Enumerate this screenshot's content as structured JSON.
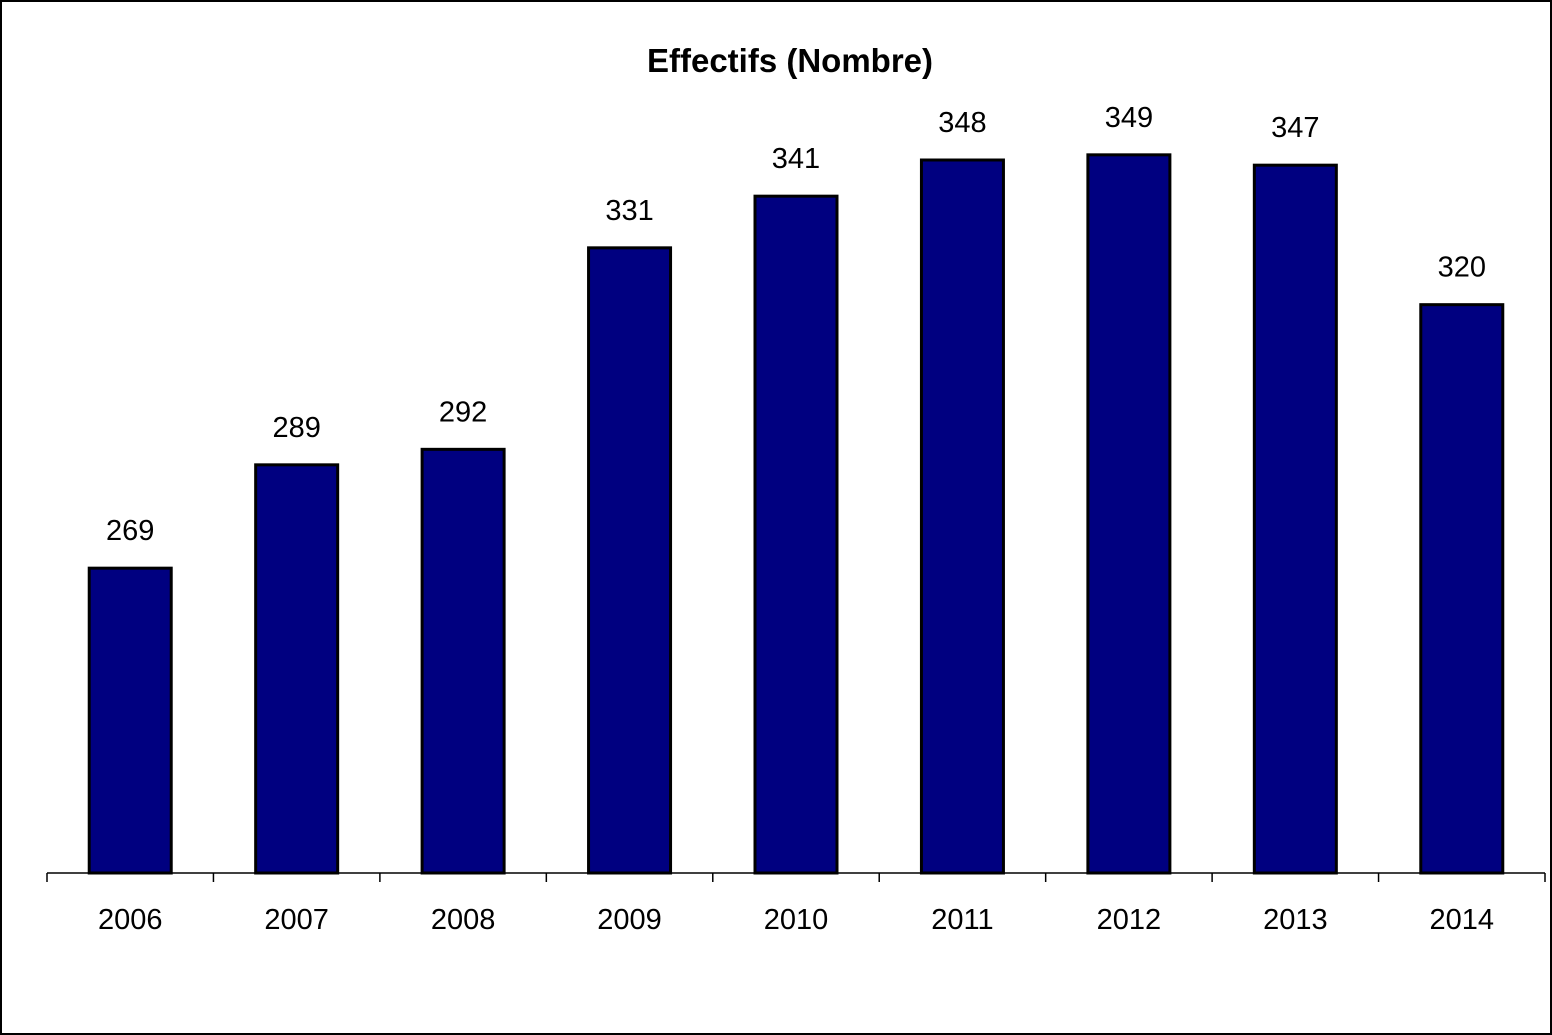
{
  "chart_data": {
    "type": "bar",
    "title": "Effectifs (Nombre)",
    "xlabel": "",
    "ylabel": "",
    "categories": [
      "2006",
      "2007",
      "2008",
      "2009",
      "2010",
      "2011",
      "2012",
      "2013",
      "2014"
    ],
    "values": [
      269,
      289,
      292,
      331,
      341,
      348,
      349,
      347,
      320
    ],
    "data_labels": [
      "269",
      "289",
      "292",
      "331",
      "341",
      "348",
      "349",
      "347",
      "320"
    ],
    "ylim": [
      210,
      360
    ],
    "grid": false,
    "legend": "none",
    "colors": {
      "bar_fill": "#000080",
      "bar_stroke": "#000000",
      "background": "#ffffff"
    }
  }
}
